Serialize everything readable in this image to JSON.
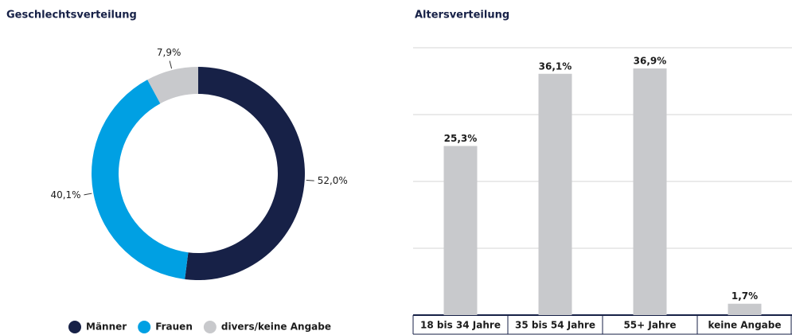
{
  "chart_data": [
    {
      "type": "pie",
      "title": "Geschlechtsverteilung",
      "donut": true,
      "categories": [
        "Männer",
        "Frauen",
        "divers/keine Angabe"
      ],
      "values": [
        52.0,
        40.1,
        7.9
      ],
      "value_labels": [
        "52,0%",
        "40,1%",
        "7,9%"
      ],
      "colors": [
        "#172147",
        "#00a0e3",
        "#c8c9cc"
      ],
      "legend": "bottom"
    },
    {
      "type": "bar",
      "title": "Altersverteilung",
      "categories": [
        "18 bis 34 Jahre",
        "35 bis 54 Jahre",
        "55+ Jahre",
        "keine Angabe"
      ],
      "values": [
        25.3,
        36.1,
        36.9,
        1.7
      ],
      "value_labels": [
        "25,3%",
        "36,1%",
        "36,9%",
        "1,7%"
      ],
      "color": "#c8c9cc",
      "ylim": [
        0,
        40
      ],
      "yticks": [
        0,
        10,
        20,
        30,
        40
      ],
      "grid": true
    }
  ]
}
